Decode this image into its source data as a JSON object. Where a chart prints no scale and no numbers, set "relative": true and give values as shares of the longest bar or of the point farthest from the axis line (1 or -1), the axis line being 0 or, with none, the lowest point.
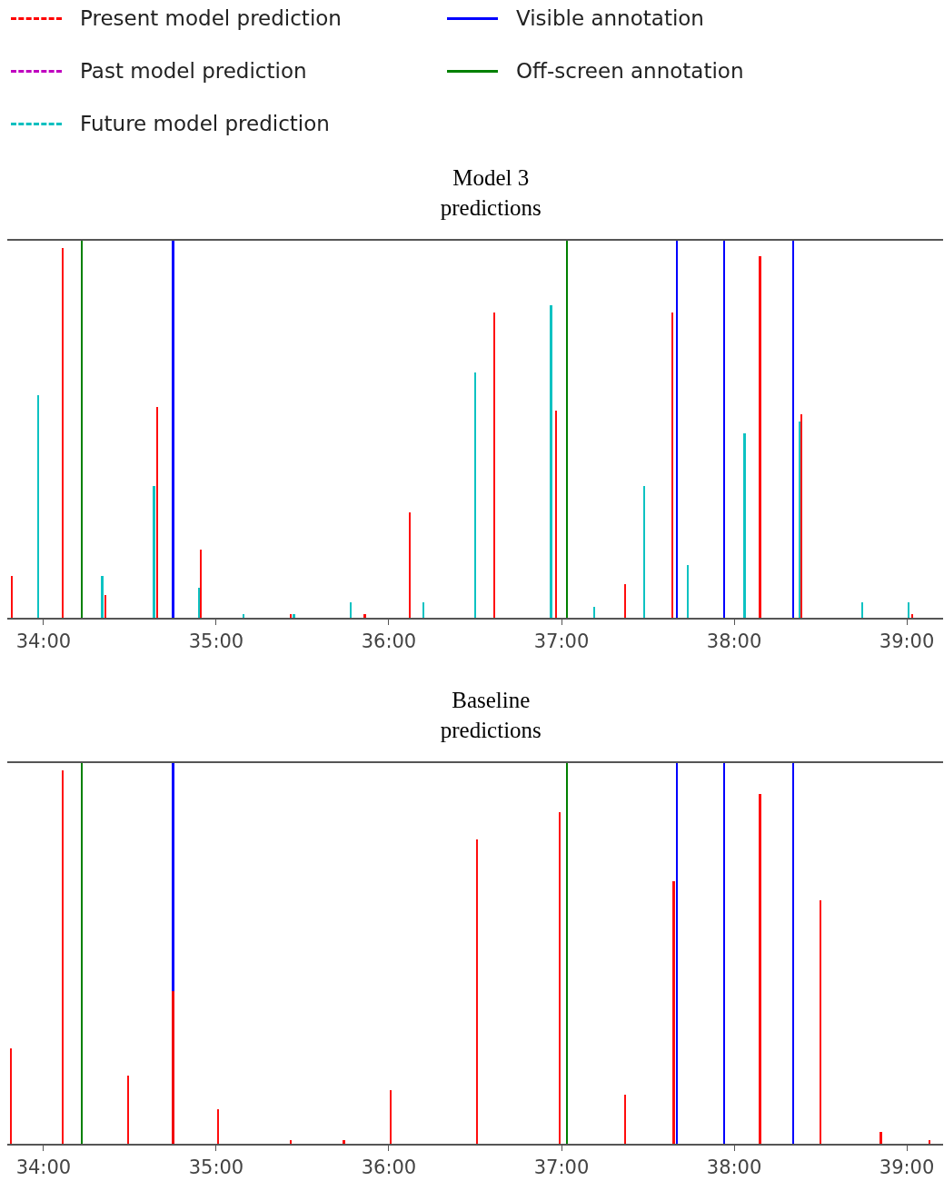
{
  "chart_data": [
    {
      "type": "bar",
      "title": "Model 3\npredictions",
      "relative": true,
      "legend": "top left",
      "grid": false,
      "xlim": [
        33.79,
        39.21
      ],
      "xticks": [
        {
          "value": 34,
          "label": "34:00"
        },
        {
          "value": 35,
          "label": "35:00"
        },
        {
          "value": 36,
          "label": "36:00"
        },
        {
          "value": 37,
          "label": "37:00"
        },
        {
          "value": 38,
          "label": "38:00"
        },
        {
          "value": 39,
          "label": "39:00"
        }
      ],
      "series": [
        {
          "name": "Present model prediction",
          "color": "#ff0000",
          "line_style": "dashed",
          "x": [
            33.816,
            34.11,
            34.36,
            34.66,
            34.91,
            35.43,
            35.86,
            36.12,
            36.61,
            36.97,
            37.37,
            37.64,
            38.15,
            38.39,
            39.03
          ],
          "values": [
            0.11,
            0.98,
            0.06,
            0.56,
            0.18,
            0.01,
            0.01,
            0.28,
            0.81,
            0.55,
            0.09,
            0.81,
            0.96,
            0.54,
            0.01
          ]
        },
        {
          "name": "Past model prediction",
          "color": "#bf00bf",
          "line_style": "dashed"
        },
        {
          "name": "Future model prediction",
          "color": "#00bfbf",
          "line_style": "dashed",
          "x": [
            33.97,
            34.34,
            34.64,
            34.9,
            35.16,
            35.45,
            35.78,
            36.2,
            36.5,
            36.94,
            37.19,
            37.48,
            37.73,
            38.06,
            38.38,
            38.74,
            39.01
          ],
          "values": [
            0.59,
            0.11,
            0.35,
            0.08,
            0.01,
            0.01,
            0.04,
            0.04,
            0.65,
            0.83,
            0.03,
            0.35,
            0.14,
            0.49,
            0.52,
            0.04,
            0.04
          ]
        },
        {
          "name": "Visible annotation",
          "color": "#0000ff",
          "line_style": "solid",
          "x": [
            34.75,
            37.67,
            37.94,
            38.34
          ],
          "values": [
            1,
            1,
            1,
            1
          ]
        },
        {
          "name": "Off-screen annotation",
          "color": "#008000",
          "line_style": "solid",
          "x": [
            34.22,
            37.03
          ],
          "values": [
            1,
            1
          ]
        }
      ]
    },
    {
      "type": "bar",
      "title": "Baseline\npredictions",
      "relative": true,
      "grid": false,
      "xlim": [
        33.79,
        39.21
      ],
      "xticks": [
        {
          "value": 34,
          "label": "34:00"
        },
        {
          "value": 35,
          "label": "35:00"
        },
        {
          "value": 36,
          "label": "36:00"
        },
        {
          "value": 37,
          "label": "37:00"
        },
        {
          "value": 38,
          "label": "38:00"
        },
        {
          "value": 39,
          "label": "39:00"
        }
      ],
      "series": [
        {
          "color": "#0000ff",
          "line_style": "solid",
          "x": [
            34.75,
            37.67,
            37.94,
            38.34
          ],
          "values": [
            1,
            1,
            1,
            1
          ]
        },
        {
          "color": "#008000",
          "line_style": "solid",
          "x": [
            34.22,
            37.03
          ],
          "values": [
            1,
            1
          ]
        },
        {
          "color": "#ff0000",
          "line_style": "dashed",
          "x": [
            33.81,
            34.11,
            34.49,
            34.75,
            35.01,
            35.43,
            35.74,
            36.01,
            36.51,
            36.99,
            37.37,
            37.65,
            38.15,
            38.5,
            38.85,
            39.13
          ],
          "values": [
            0.25,
            0.98,
            0.18,
            0.4,
            0.09,
            0.01,
            0.01,
            0.14,
            0.8,
            0.87,
            0.13,
            0.69,
            0.92,
            0.64,
            0.03,
            0.01
          ]
        }
      ]
    }
  ]
}
